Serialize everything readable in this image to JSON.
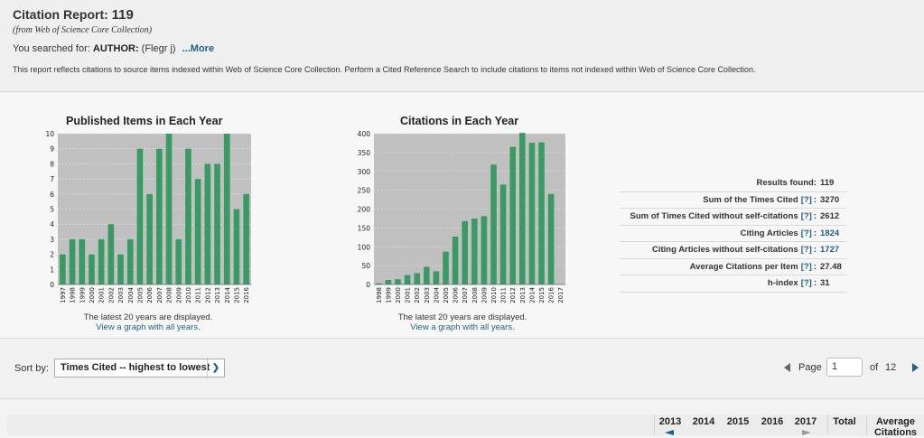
{
  "header": {
    "title_prefix": "Citation Report:",
    "title_count": "119",
    "subtitle": "(from Web of Science Core Collection)",
    "searched_label": "You searched for:",
    "searched_query_label": "AUTHOR:",
    "searched_query_value": "(Flegr j)",
    "more_link": "...More",
    "note": "This report reflects citations to source items indexed within Web of Science Core Collection. Perform a Cited Reference Search to include citations to items not indexed within Web of Science Core Collection."
  },
  "charts": {
    "published": {
      "title": "Published Items in Each Year",
      "caption": "The latest 20 years are displayed.",
      "link": "View a graph with all years."
    },
    "citations": {
      "title": "Citations in Each Year",
      "caption": "The latest 20 years are displayed.",
      "link": "View a graph with all years."
    }
  },
  "chart_data": [
    {
      "type": "bar",
      "title": "Published Items in Each Year",
      "categories": [
        "1997",
        "1998",
        "1999",
        "2000",
        "2001",
        "2002",
        "2003",
        "2004",
        "2005",
        "2006",
        "2007",
        "2008",
        "2009",
        "2010",
        "2011",
        "2012",
        "2013",
        "2014",
        "2015",
        "2016"
      ],
      "values": [
        2,
        3,
        3,
        2,
        3,
        4,
        2,
        3,
        9,
        6,
        9,
        10,
        3,
        9,
        7,
        8,
        8,
        10,
        5,
        6
      ],
      "ylim": [
        0,
        10
      ],
      "yticks": [
        0,
        1,
        2,
        3,
        4,
        5,
        6,
        7,
        8,
        9,
        10
      ],
      "grid": true,
      "bar_color": "#3a9a64",
      "plot_bg": "#c0c0c0"
    },
    {
      "type": "bar",
      "title": "Citations in Each Year",
      "categories": [
        "1998",
        "1999",
        "2000",
        "2001",
        "2002",
        "2003",
        "2004",
        "2005",
        "2006",
        "2007",
        "2008",
        "2009",
        "2010",
        "2011",
        "2012",
        "2013",
        "2014",
        "2015",
        "2016",
        "2017"
      ],
      "values": [
        3,
        12,
        14,
        25,
        30,
        47,
        35,
        87,
        127,
        168,
        175,
        181,
        318,
        265,
        365,
        402,
        376,
        377,
        240,
        0
      ],
      "ylim": [
        0,
        400
      ],
      "yticks": [
        0,
        50,
        100,
        150,
        200,
        250,
        300,
        350,
        400
      ],
      "grid": true,
      "bar_color": "#3a9a64",
      "plot_bg": "#c0c0c0"
    }
  ],
  "stats": [
    {
      "label": "Results found:",
      "help": "",
      "value": "119",
      "value_is_link": false
    },
    {
      "label": "Sum of the Times Cited",
      "help": "[?]",
      "value": "3270",
      "value_is_link": false
    },
    {
      "label": "Sum of Times Cited without self-citations",
      "help": "[?]",
      "value": "2612",
      "value_is_link": false
    },
    {
      "label": "Citing Articles",
      "help": "[?]",
      "value": "1824",
      "value_is_link": true
    },
    {
      "label": "Citing Articles without self-citations",
      "help": "[?]",
      "value": "1727",
      "value_is_link": true
    },
    {
      "label": "Average Citations per Item",
      "help": "[?]",
      "value": "27.48",
      "value_is_link": false
    },
    {
      "label": "h-index",
      "help": "[?]",
      "value": "31",
      "value_is_link": false
    }
  ],
  "sortbar": {
    "sort_label": "Sort by:",
    "sort_value": "Times Cited -- highest to lowest",
    "page_label": "Page",
    "page_value": "1",
    "of_label": "of",
    "total_pages": "12"
  },
  "table_header": {
    "years": [
      "2013",
      "2014",
      "2015",
      "2016",
      "2017"
    ],
    "total": "Total",
    "average": "Average Citations"
  },
  "colors": {
    "link": "#1d5f8b",
    "bar": "#3a9a64"
  }
}
